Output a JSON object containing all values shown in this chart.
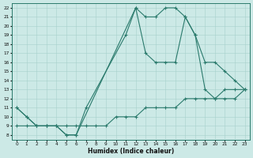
{
  "xlabel": "Humidex (Indice chaleur)",
  "bg_color": "#cce9e6",
  "grid_color": "#a8d0cc",
  "line_color": "#2a7a6c",
  "xlim": [
    0,
    23
  ],
  "ylim": [
    8,
    22
  ],
  "xtick_labels": [
    "0",
    "1",
    "2",
    "3",
    "4",
    "5",
    "6",
    "7",
    "8",
    "9",
    "10",
    "11",
    "12",
    "13",
    "14",
    "15",
    "16",
    "17",
    "18",
    "19",
    "20",
    "21",
    "22",
    "23"
  ],
  "xticks": [
    0,
    1,
    2,
    3,
    4,
    5,
    6,
    7,
    8,
    9,
    10,
    11,
    12,
    13,
    14,
    15,
    16,
    17,
    18,
    19,
    20,
    21,
    22,
    23
  ],
  "yticks": [
    8,
    9,
    10,
    11,
    12,
    13,
    14,
    15,
    16,
    17,
    18,
    19,
    20,
    21,
    22
  ],
  "series": [
    {
      "x": [
        0,
        1,
        2,
        3,
        4,
        5,
        6,
        12,
        13,
        14,
        15,
        16,
        17,
        18,
        19,
        20,
        21,
        22,
        23
      ],
      "y": [
        11,
        10,
        9,
        9,
        9,
        8,
        8,
        22,
        21,
        21,
        22,
        22,
        21,
        19,
        13,
        12,
        13,
        13,
        13
      ]
    },
    {
      "x": [
        0,
        1,
        2,
        3,
        4,
        5,
        6,
        7,
        8,
        9,
        10,
        11,
        12,
        13,
        14,
        15,
        16,
        17,
        18,
        19,
        20,
        21,
        22,
        23
      ],
      "y": [
        9,
        9,
        9,
        9,
        9,
        9,
        9,
        9,
        9,
        9,
        10,
        10,
        10,
        11,
        11,
        11,
        11,
        12,
        12,
        12,
        12,
        12,
        12,
        13
      ]
    },
    {
      "x": [
        0,
        1,
        2,
        3,
        4,
        5,
        6,
        7,
        11,
        12,
        13,
        14,
        15,
        16,
        17,
        18,
        19,
        20,
        21,
        22,
        23
      ],
      "y": [
        11,
        10,
        9,
        9,
        9,
        8,
        8,
        11,
        19,
        22,
        17,
        16,
        16,
        16,
        21,
        19,
        16,
        16,
        15,
        14,
        13
      ]
    }
  ]
}
